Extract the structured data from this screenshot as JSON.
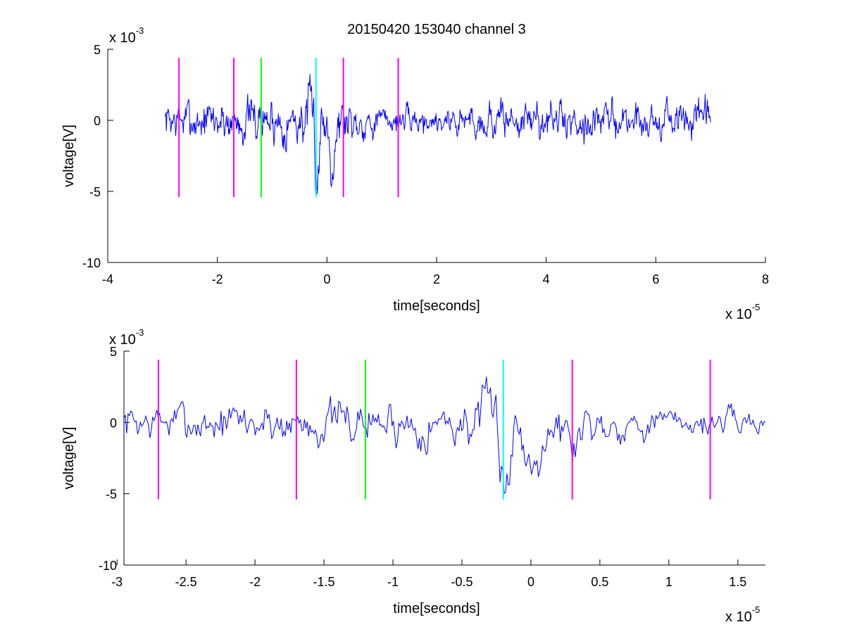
{
  "chart_data": [
    {
      "type": "line",
      "title": "20150420 153040 channel 3",
      "xlabel": "time[seconds]",
      "ylabel": "voltage[V]",
      "x_multiplier": {
        "base": "x 10",
        "exp": "-5"
      },
      "y_multiplier": {
        "base": "x 10",
        "exp": "-3"
      },
      "xlim": [
        -4,
        8
      ],
      "ylim": [
        -10,
        5
      ],
      "xticks": [
        -4,
        -2,
        0,
        2,
        4,
        6,
        8
      ],
      "xtick_labels": [
        "-4",
        "-2",
        "0",
        "2",
        "4",
        "6",
        "8"
      ],
      "yticks": [
        -10,
        -5,
        0,
        5
      ],
      "ytick_labels": [
        "-10",
        "-5",
        "0",
        "5"
      ],
      "grid": false,
      "series": [
        {
          "color": "#0000ff",
          "x_range": [
            -2.95,
            7.0
          ],
          "samples": 1000,
          "seed": 7,
          "envelope": [
            [
              -2.95,
              1.3
            ],
            [
              -2.0,
              1.5
            ],
            [
              -0.5,
              1.6
            ],
            [
              -0.2,
              2.4
            ],
            [
              0.4,
              1.5
            ],
            [
              1.0,
              0.9
            ],
            [
              2.0,
              0.9
            ],
            [
              3.0,
              1.3
            ],
            [
              7.0,
              1.25
            ]
          ],
          "dips": [
            [
              -0.18,
              -3.5,
              0.05
            ],
            [
              0.1,
              -2.5,
              0.06
            ]
          ]
        }
      ],
      "markers": [
        {
          "x": -2.7,
          "color": "#ff00ff",
          "y_range": [
            -5.4,
            4.4
          ]
        },
        {
          "x": -1.7,
          "color": "#ff00ff",
          "y_range": [
            -5.4,
            4.4
          ]
        },
        {
          "x": -1.2,
          "color": "#00ff00",
          "y_range": [
            -5.4,
            4.4
          ]
        },
        {
          "x": -0.2,
          "color": "#00ffff",
          "y_range": [
            -5.4,
            4.4
          ]
        },
        {
          "x": 0.3,
          "color": "#ff00ff",
          "y_range": [
            -5.4,
            4.4
          ]
        },
        {
          "x": 1.3,
          "color": "#ff00ff",
          "y_range": [
            -5.4,
            4.4
          ]
        }
      ]
    },
    {
      "type": "line",
      "title": "",
      "xlabel": "time[seconds]",
      "ylabel": "voltage[V]",
      "x_multiplier": {
        "base": "x 10",
        "exp": "-5"
      },
      "y_multiplier": {
        "base": "x 10",
        "exp": "-3"
      },
      "xlim": [
        -2.95,
        1.7
      ],
      "ylim": [
        -10,
        5
      ],
      "xticks": [
        -3,
        -2.5,
        -2,
        -1.5,
        -1,
        -0.5,
        0,
        0.5,
        1,
        1.5
      ],
      "xtick_labels": [
        "-3",
        "-2.5",
        "-2",
        "-1.5",
        "-1",
        "-0.5",
        "0",
        "0.5",
        "1",
        "1.5"
      ],
      "yticks": [
        -10,
        -5,
        0,
        5
      ],
      "ytick_labels": [
        "-10",
        "-5",
        "0",
        "5"
      ],
      "grid": false,
      "series": [
        {
          "color": "#0000ff",
          "x_range": [
            -2.95,
            1.7
          ],
          "samples": 470,
          "seed": 7,
          "envelope": [
            [
              -2.95,
              1.3
            ],
            [
              -2.0,
              1.5
            ],
            [
              -0.5,
              1.6
            ],
            [
              -0.2,
              2.4
            ],
            [
              0.4,
              1.5
            ],
            [
              1.0,
              0.9
            ],
            [
              1.7,
              0.9
            ]
          ],
          "dips": [
            [
              -0.18,
              -3.5,
              0.05
            ],
            [
              0.0,
              -2.8,
              0.06
            ],
            [
              0.3,
              -1.8,
              0.05
            ]
          ]
        }
      ],
      "markers": [
        {
          "x": -2.7,
          "color": "#ff00ff",
          "y_range": [
            -5.4,
            4.4
          ]
        },
        {
          "x": -1.7,
          "color": "#ff00ff",
          "y_range": [
            -5.4,
            4.4
          ]
        },
        {
          "x": -1.2,
          "color": "#00ff00",
          "y_range": [
            -5.4,
            4.4
          ]
        },
        {
          "x": -0.2,
          "color": "#00ffff",
          "y_range": [
            -5.4,
            4.4
          ]
        },
        {
          "x": 0.3,
          "color": "#ff00ff",
          "y_range": [
            -5.4,
            4.4
          ]
        },
        {
          "x": 1.3,
          "color": "#ff00ff",
          "y_range": [
            -5.4,
            4.4
          ]
        }
      ]
    }
  ]
}
